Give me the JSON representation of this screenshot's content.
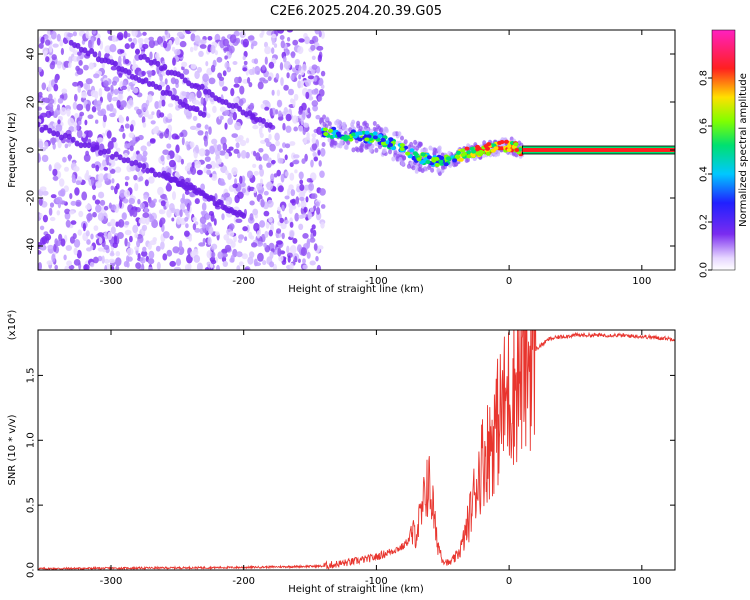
{
  "title": "C2E6.2025.204.20.39.G05",
  "colors": {
    "noise": "#7a2cf0",
    "snr_line": "#e8352e"
  },
  "chart_data": [
    {
      "type": "heatmap",
      "xlabel": "Height of straight line (km)",
      "ylabel": "Frequency (Hz)",
      "xlim": [
        -355,
        125
      ],
      "ylim": [
        -50,
        50
      ],
      "xticks": [
        -300,
        -200,
        -100,
        0,
        100
      ],
      "yticks": [
        -40,
        -20,
        0,
        20,
        40
      ],
      "colorbar": {
        "label": "Normalized spectral amplitude",
        "range": [
          0,
          1
        ],
        "ticks": [
          "0.0",
          "0.2",
          "0.4",
          "0.6",
          "0.8"
        ],
        "colormap": "rainbow (violet → blue → cyan → green → yellow → red → magenta)"
      },
      "noise_region_x": [
        -355,
        -140
      ],
      "signal_track": {
        "x": [
          -140,
          -120,
          -100,
          -90,
          -80,
          -70,
          -60,
          -50,
          -40,
          -30,
          -20,
          -10,
          0,
          10,
          50,
          100,
          125
        ],
        "freq": [
          8,
          6,
          5,
          3,
          0,
          -3,
          -4,
          -5,
          -3,
          -1,
          0,
          1,
          2,
          0,
          0,
          0,
          0
        ]
      },
      "noise_stripes": [
        {
          "x": [
            -355,
            -240
          ],
          "freq": [
            10,
            -15
          ]
        },
        {
          "x": [
            -260,
            -200
          ],
          "freq": [
            -10,
            -28
          ]
        },
        {
          "x": [
            -330,
            -230
          ],
          "freq": [
            45,
            15
          ]
        },
        {
          "x": [
            -280,
            -180
          ],
          "freq": [
            40,
            10
          ]
        }
      ]
    },
    {
      "type": "line",
      "xlabel": "Height of straight line (km)",
      "ylabel": "SNR (10 * v/v)",
      "multiplier": "(x10⁴)",
      "xlim": [
        -355,
        125
      ],
      "ylim": [
        0,
        1.85
      ],
      "xticks": [
        -300,
        -200,
        -100,
        0,
        100
      ],
      "yticks": [
        "0.0",
        "0.5",
        "1.0",
        "1.5"
      ],
      "profile": {
        "x": [
          -355,
          -200,
          -140,
          -120,
          -100,
          -80,
          -70,
          -65,
          -62,
          -58,
          -55,
          -50,
          -45,
          -40,
          -35,
          -30,
          -25,
          -20,
          -15,
          -10,
          -5,
          0,
          10,
          20,
          30,
          40,
          50,
          80,
          100,
          125
        ],
        "snr": [
          0.01,
          0.02,
          0.03,
          0.06,
          0.1,
          0.18,
          0.3,
          0.45,
          0.7,
          0.55,
          0.25,
          0.08,
          0.05,
          0.1,
          0.2,
          0.4,
          0.65,
          0.85,
          0.95,
          1.1,
          1.25,
          1.35,
          1.55,
          1.7,
          1.78,
          1.8,
          1.81,
          1.81,
          1.8,
          1.78
        ]
      }
    }
  ]
}
